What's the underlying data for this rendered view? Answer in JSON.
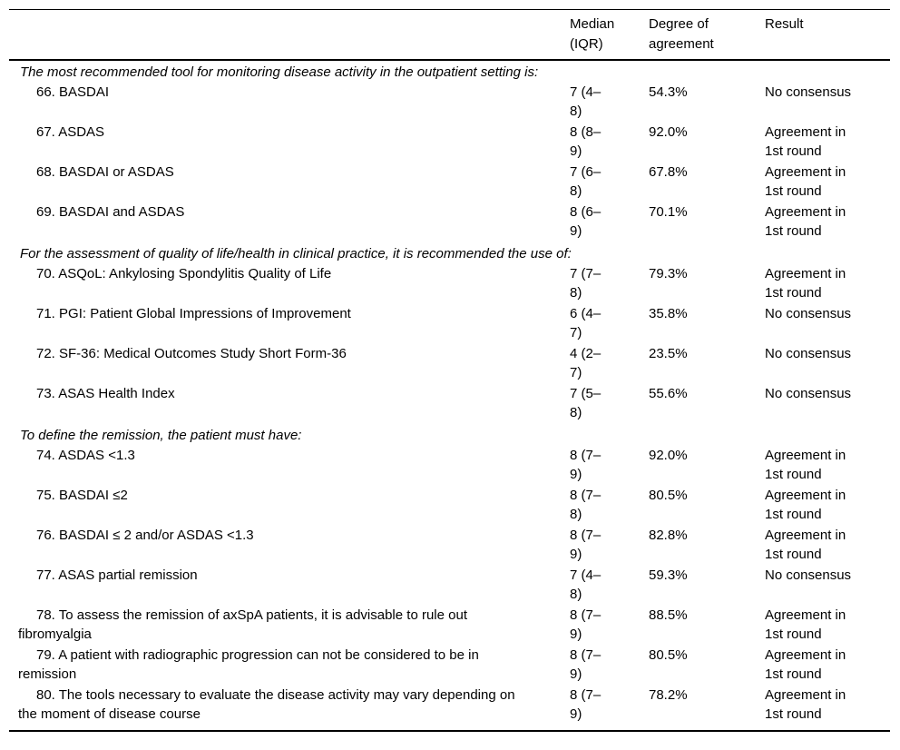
{
  "table": {
    "columns": {
      "item": "",
      "median": "Median (IQR)",
      "agreement": "Degree of agreement",
      "result": "Result"
    },
    "sections": [
      {
        "heading": "The most recommended tool for monitoring disease activity in the outpatient setting is:",
        "items": [
          {
            "label": "66. BASDAI",
            "median": "7 (4–8)",
            "agreement": "54.3%",
            "result": "No consensus"
          },
          {
            "label": "67. ASDAS",
            "median": "8 (8–9)",
            "agreement": "92.0%",
            "result": "Agreement in 1st round"
          },
          {
            "label": "68. BASDAI or ASDAS",
            "median": "7 (6–8)",
            "agreement": "67.8%",
            "result": "Agreement in 1st round"
          },
          {
            "label": "69. BASDAI and ASDAS",
            "median": "8 (6–9)",
            "agreement": "70.1%",
            "result": "Agreement in 1st round"
          }
        ]
      },
      {
        "heading": "For the assessment of quality of life/health in clinical practice, it is recommended the use of:",
        "items": [
          {
            "label": "70. ASQoL: Ankylosing Spondylitis Quality of Life",
            "median": "7 (7–8)",
            "agreement": "79.3%",
            "result": "Agreement in 1st round"
          },
          {
            "label": "71. PGI: Patient Global Impressions of Improvement",
            "median": "6 (4–7)",
            "agreement": "35.8%",
            "result": "No consensus"
          },
          {
            "label": "72. SF-36: Medical Outcomes Study Short Form-36",
            "median": "4 (2–7)",
            "agreement": "23.5%",
            "result": "No consensus"
          },
          {
            "label": "73. ASAS Health Index",
            "median": "7 (5–8)",
            "agreement": "55.6%",
            "result": "No consensus"
          }
        ]
      },
      {
        "heading": "To define the remission, the patient must have:",
        "items": [
          {
            "label": "74. ASDAS <1.3",
            "median": "8 (7–9)",
            "agreement": "92.0%",
            "result": "Agreement in 1st round"
          },
          {
            "label": "75. BASDAI ≤2",
            "median": "8 (7–8)",
            "agreement": "80.5%",
            "result": "Agreement in 1st round"
          },
          {
            "label": "76. BASDAI ≤ 2 and/or ASDAS <1.3",
            "median": "8 (7–9)",
            "agreement": "82.8%",
            "result": "Agreement in 1st round"
          },
          {
            "label": "77. ASAS partial remission",
            "median": "7 (4–8)",
            "agreement": "59.3%",
            "result": "No consensus"
          },
          {
            "label": "78. To assess the remission of axSpA patients, it is advisable to rule out fibromyalgia",
            "median": "8 (7–9)",
            "agreement": "88.5%",
            "result": "Agreement in 1st round"
          },
          {
            "label": "79. A patient with radiographic progression can not be considered to be in remission",
            "median": "8 (7–9)",
            "agreement": "80.5%",
            "result": "Agreement in 1st round"
          },
          {
            "label": "80. The tools necessary to evaluate the disease activity may vary depending on the moment of disease course",
            "median": "8 (7–9)",
            "agreement": "78.2%",
            "result": "Agreement in 1st round"
          }
        ]
      }
    ]
  }
}
